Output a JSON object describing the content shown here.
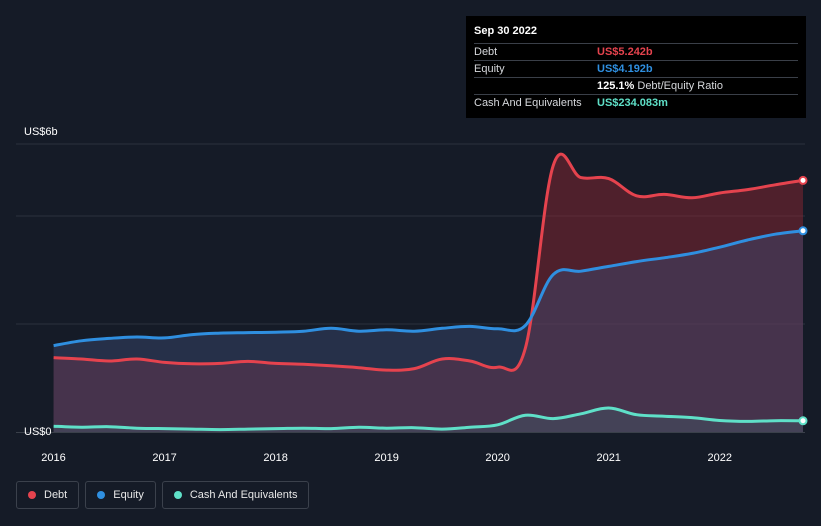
{
  "tooltip": {
    "date": "Sep 30 2022",
    "rows": [
      {
        "label": "Debt",
        "value": "US$5.242b",
        "color": "#e5434e"
      },
      {
        "label": "Equity",
        "value": "US$4.192b",
        "color": "#2f8fe0"
      },
      {
        "label": "",
        "value": "125.1%",
        "suffix": "Debt/Equity Ratio",
        "color": "#ffffff"
      },
      {
        "label": "Cash And Equivalents",
        "value": "US$234.083m",
        "color": "#5fe0c8"
      }
    ]
  },
  "legend": [
    {
      "label": "Debt",
      "color": "#e5434e"
    },
    {
      "label": "Equity",
      "color": "#2f8fe0"
    },
    {
      "label": "Cash And Equivalents",
      "color": "#5fe0c8"
    }
  ],
  "chart_data": {
    "type": "area",
    "ylabel_top": "US$6b",
    "ylabel_bottom": "US$0",
    "ylim": [
      0,
      6
    ],
    "xlim": [
      2015.95,
      2022.75
    ],
    "x_ticks": [
      "2016",
      "2017",
      "2018",
      "2019",
      "2020",
      "2021",
      "2022"
    ],
    "grid": true,
    "series": [
      {
        "name": "Debt",
        "color": "#e5434e",
        "x": [
          2016.0,
          2016.25,
          2016.5,
          2016.75,
          2017.0,
          2017.25,
          2017.5,
          2017.75,
          2018.0,
          2018.25,
          2018.5,
          2018.75,
          2019.0,
          2019.25,
          2019.5,
          2019.75,
          2020.0,
          2020.25,
          2020.5,
          2020.75,
          2021.0,
          2021.25,
          2021.5,
          2021.75,
          2022.0,
          2022.25,
          2022.5,
          2022.75
        ],
        "values": [
          1.55,
          1.52,
          1.48,
          1.52,
          1.45,
          1.42,
          1.43,
          1.47,
          1.43,
          1.41,
          1.38,
          1.34,
          1.29,
          1.32,
          1.52,
          1.48,
          1.35,
          1.75,
          5.55,
          5.3,
          5.28,
          4.92,
          4.95,
          4.88,
          4.98,
          5.05,
          5.15,
          5.242
        ]
      },
      {
        "name": "Equity",
        "color": "#2f8fe0",
        "x": [
          2016.0,
          2016.25,
          2016.5,
          2016.75,
          2017.0,
          2017.25,
          2017.5,
          2017.75,
          2018.0,
          2018.25,
          2018.5,
          2018.75,
          2019.0,
          2019.25,
          2019.5,
          2019.75,
          2020.0,
          2020.25,
          2020.5,
          2020.75,
          2021.0,
          2021.25,
          2021.5,
          2021.75,
          2022.0,
          2022.25,
          2022.5,
          2022.75
        ],
        "values": [
          1.8,
          1.9,
          1.95,
          1.98,
          1.96,
          2.03,
          2.06,
          2.07,
          2.08,
          2.1,
          2.16,
          2.1,
          2.13,
          2.1,
          2.16,
          2.2,
          2.15,
          2.22,
          3.28,
          3.35,
          3.45,
          3.55,
          3.63,
          3.72,
          3.85,
          4.0,
          4.12,
          4.192
        ]
      },
      {
        "name": "Cash And Equivalents",
        "color": "#5fe0c8",
        "x": [
          2016.0,
          2016.25,
          2016.5,
          2016.75,
          2017.0,
          2017.25,
          2017.5,
          2017.75,
          2018.0,
          2018.25,
          2018.5,
          2018.75,
          2019.0,
          2019.25,
          2019.5,
          2019.75,
          2020.0,
          2020.25,
          2020.5,
          2020.75,
          2021.0,
          2021.25,
          2021.5,
          2021.75,
          2022.0,
          2022.25,
          2022.5,
          2022.75
        ],
        "values": [
          0.12,
          0.1,
          0.11,
          0.08,
          0.07,
          0.06,
          0.05,
          0.06,
          0.07,
          0.08,
          0.07,
          0.1,
          0.08,
          0.09,
          0.06,
          0.1,
          0.15,
          0.35,
          0.28,
          0.38,
          0.5,
          0.36,
          0.33,
          0.3,
          0.24,
          0.22,
          0.235,
          0.234
        ]
      }
    ]
  }
}
